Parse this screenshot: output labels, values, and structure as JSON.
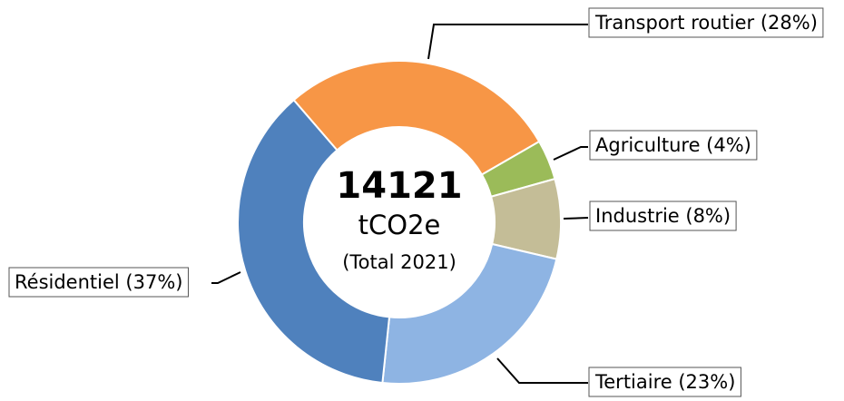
{
  "chart_data": {
    "type": "donut",
    "values": [
      28,
      4,
      8,
      23,
      37
    ],
    "value_labels": [
      "Transport routier (28%)",
      "Agriculture (4%)",
      "Industrie (8%)",
      "Tertiaire (23%)",
      "Résidentiel (37%)"
    ],
    "colors": [
      "#f79646",
      "#9bbb59",
      "#c4bd97",
      "#8eb4e3",
      "#4f81bd"
    ],
    "center_text": [
      "14121",
      "tCO2e",
      "(Total 2021)"
    ]
  }
}
